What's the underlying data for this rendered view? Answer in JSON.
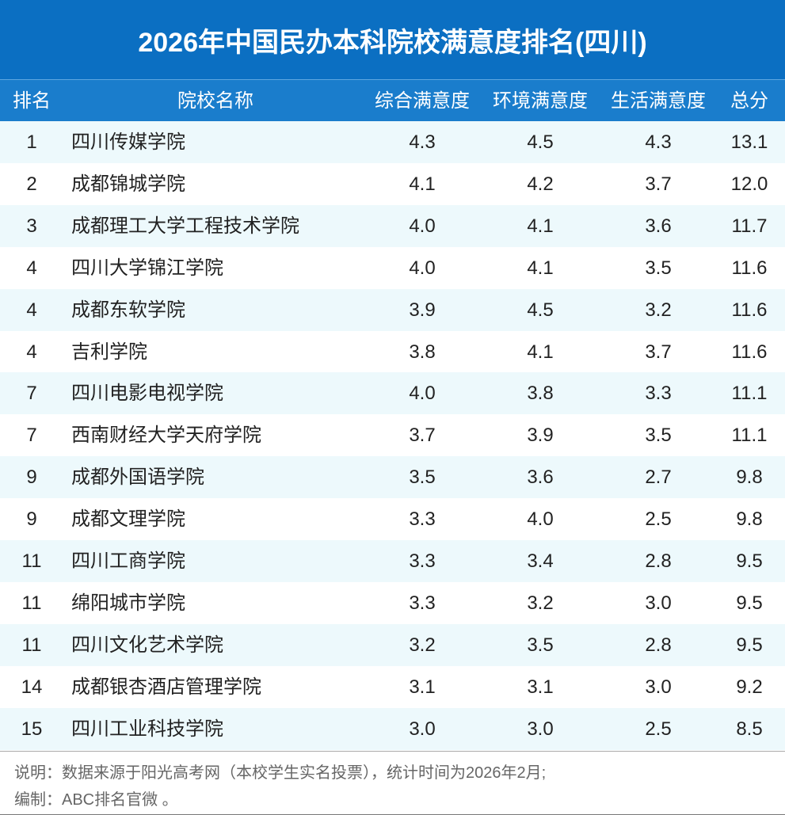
{
  "title": "2026年中国民办本科院校满意度排名(四川)",
  "table": {
    "header": [
      "排名",
      "院校名称",
      "综合满意度",
      "环境满意度",
      "生活满意度",
      "总分"
    ],
    "rows": [
      [
        "1",
        "四川传媒学院",
        "4.3",
        "4.5",
        "4.3",
        "13.1"
      ],
      [
        "2",
        "成都锦城学院",
        "4.1",
        "4.2",
        "3.7",
        "12.0"
      ],
      [
        "3",
        "成都理工大学工程技术学院",
        "4.0",
        "4.1",
        "3.6",
        "11.7"
      ],
      [
        "4",
        "四川大学锦江学院",
        "4.0",
        "4.1",
        "3.5",
        "11.6"
      ],
      [
        "4",
        "成都东软学院",
        "3.9",
        "4.5",
        "3.2",
        "11.6"
      ],
      [
        "4",
        "吉利学院",
        "3.8",
        "4.1",
        "3.7",
        "11.6"
      ],
      [
        "7",
        "四川电影电视学院",
        "4.0",
        "3.8",
        "3.3",
        "11.1"
      ],
      [
        "7",
        "西南财经大学天府学院",
        "3.7",
        "3.9",
        "3.5",
        "11.1"
      ],
      [
        "9",
        "成都外国语学院",
        "3.5",
        "3.6",
        "2.7",
        "9.8"
      ],
      [
        "9",
        "成都文理学院",
        "3.3",
        "4.0",
        "2.5",
        "9.8"
      ],
      [
        "11",
        "四川工商学院",
        "3.3",
        "3.4",
        "2.8",
        "9.5"
      ],
      [
        "11",
        "绵阳城市学院",
        "3.3",
        "3.2",
        "3.0",
        "9.5"
      ],
      [
        "11",
        "四川文化艺术学院",
        "3.2",
        "3.5",
        "2.8",
        "9.5"
      ],
      [
        "14",
        "成都银杏酒店管理学院",
        "3.1",
        "3.1",
        "3.0",
        "9.2"
      ],
      [
        "15",
        "四川工业科技学院",
        "3.0",
        "3.0",
        "2.5",
        "8.5"
      ]
    ]
  },
  "footer": [
    "说明：数据来源于阳光高考网（本校学生实名投票），统计时间为2026年2月;",
    "编制：ABC排名官微 。"
  ]
}
